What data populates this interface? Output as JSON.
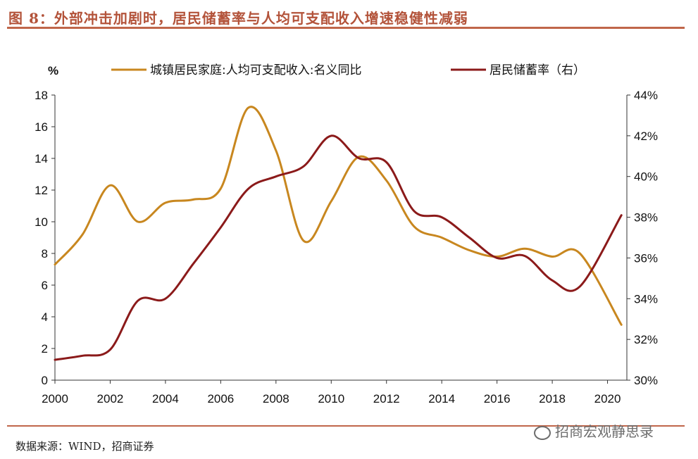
{
  "figure": {
    "title": "图 8：外部冲击加剧时，居民储蓄率与人均可支配收入增速稳健性减弱",
    "source": "数据来源：WIND，招商证券",
    "watermark": "招商宏观静思录"
  },
  "chart_data": {
    "type": "line",
    "y_unit_left": "%",
    "x_ticks": [
      "2000",
      "2002",
      "2004",
      "2006",
      "2008",
      "2010",
      "2012",
      "2014",
      "2016",
      "2018",
      "2020"
    ],
    "y_left_ticks": [
      "0",
      "2",
      "4",
      "6",
      "8",
      "10",
      "12",
      "14",
      "16",
      "18"
    ],
    "y_right_ticks": [
      "30%",
      "32%",
      "34%",
      "36%",
      "38%",
      "40%",
      "42%",
      "44%"
    ],
    "xlim": [
      2000,
      2020.7
    ],
    "ylim_left": [
      0,
      18
    ],
    "ylim_right": [
      30,
      44
    ],
    "grid": false,
    "legend_position": "top",
    "series": [
      {
        "name": "城镇居民家庭:人均可支配收入:名义同比",
        "axis": "left",
        "color": "#c8871f",
        "x": [
          2000,
          2001,
          2002,
          2003,
          2004,
          2005,
          2006,
          2007,
          2008,
          2009,
          2010,
          2011,
          2012,
          2013,
          2014,
          2015,
          2016,
          2017,
          2018,
          2019,
          2020.5
        ],
        "y": [
          7.3,
          9.2,
          12.3,
          10.0,
          11.2,
          11.4,
          12.1,
          17.2,
          14.5,
          8.8,
          11.3,
          14.1,
          12.6,
          9.7,
          9.0,
          8.2,
          7.8,
          8.3,
          7.8,
          8.0,
          3.5
        ]
      },
      {
        "name": "居民储蓄率（右）",
        "axis": "right",
        "color": "#8b1a1a",
        "x": [
          2000,
          2001,
          2002,
          2003,
          2004,
          2005,
          2006,
          2007,
          2008,
          2009,
          2010,
          2011,
          2012,
          2013,
          2014,
          2015,
          2016,
          2017,
          2018,
          2019,
          2020.5
        ],
        "y": [
          31.0,
          31.2,
          31.5,
          33.9,
          34.0,
          35.7,
          37.5,
          39.4,
          40.0,
          40.5,
          42.0,
          40.9,
          40.7,
          38.3,
          38.0,
          37.0,
          36.0,
          36.1,
          34.9,
          34.6,
          38.1
        ]
      }
    ]
  }
}
